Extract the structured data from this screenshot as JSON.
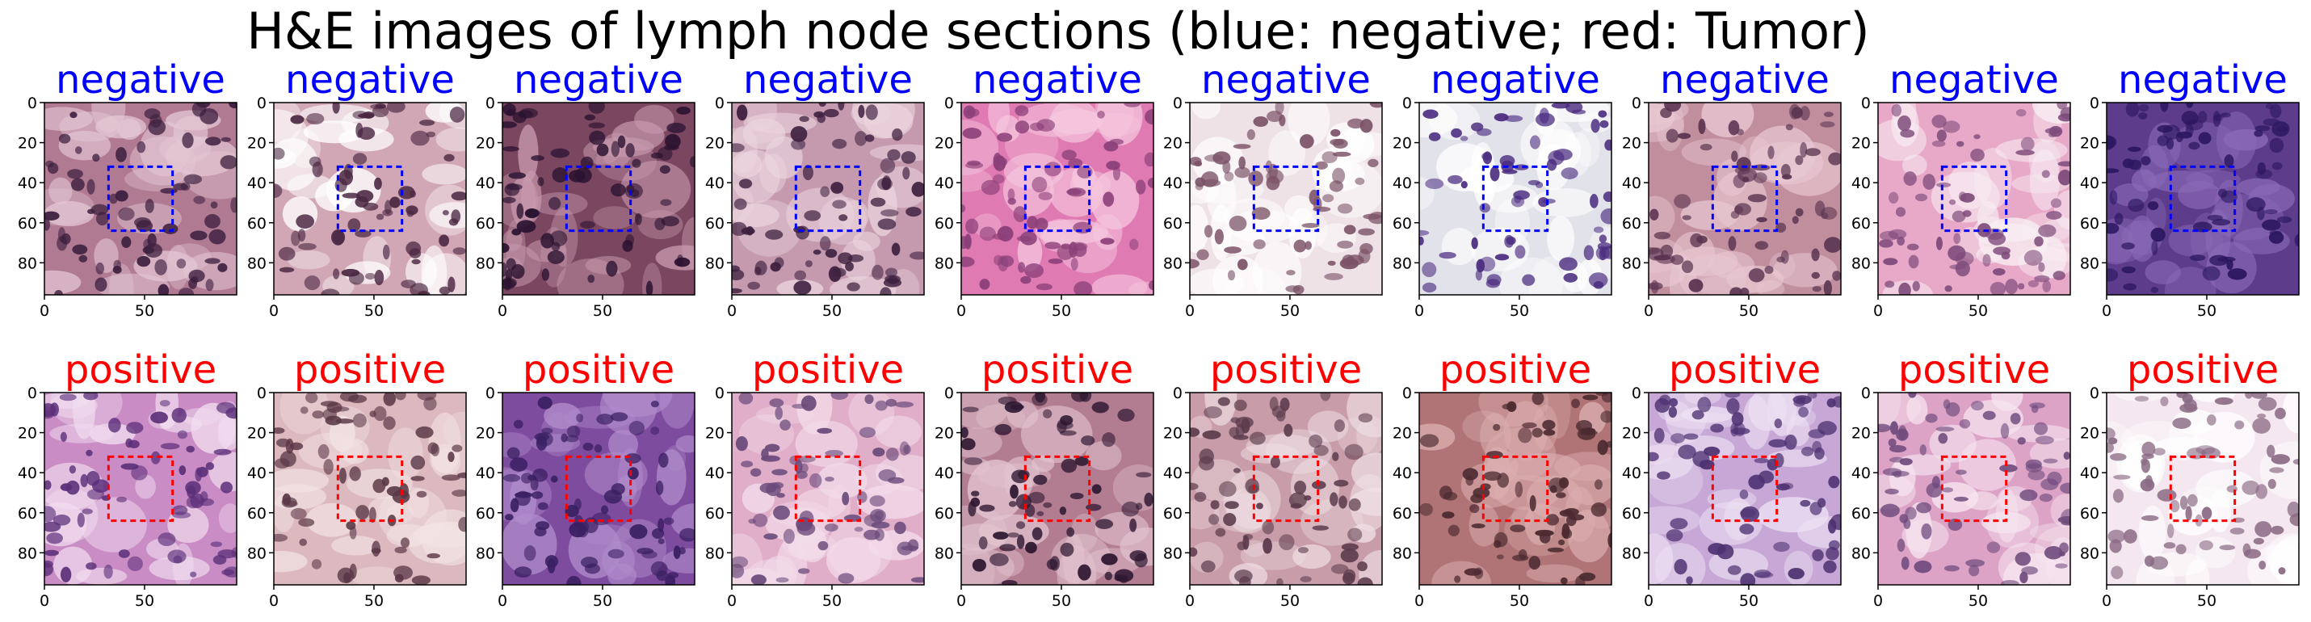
{
  "title": "H&E images of lymph node sections (blue: negative; red: Tumor)",
  "colors": {
    "negative": "#0000ff",
    "positive": "#ff0000",
    "axis": "#000000"
  },
  "axis": {
    "xticks": [
      0,
      50
    ],
    "yticks": [
      0,
      20,
      40,
      60,
      80
    ],
    "xlim": [
      0,
      96
    ],
    "ylim": [
      96,
      0
    ],
    "roi": {
      "x0": 32,
      "y0": 32,
      "x1": 64,
      "y1": 64
    }
  },
  "rows": [
    {
      "label": "negative",
      "color_key": "negative",
      "tiles": [
        {
          "bg": "#b07a92",
          "cell": "#3d1f3f",
          "alt": "#e4c7d4"
        },
        {
          "bg": "#d2a7b5",
          "cell": "#4a2742",
          "alt": "#ffffff"
        },
        {
          "bg": "#7a4660",
          "cell": "#2a1230",
          "alt": "#c89aae"
        },
        {
          "bg": "#c59aae",
          "cell": "#3e2040",
          "alt": "#ecd6df"
        },
        {
          "bg": "#e07ab3",
          "cell": "#8a3f78",
          "alt": "#f5c7de"
        },
        {
          "bg": "#efe2e6",
          "cell": "#7b5267",
          "alt": "#ffffff"
        },
        {
          "bg": "#e2e2ea",
          "cell": "#4b2c80",
          "alt": "#ffffff"
        },
        {
          "bg": "#c18e9e",
          "cell": "#5a3450",
          "alt": "#e8c8d2"
        },
        {
          "bg": "#e8a9c9",
          "cell": "#7d4a7a",
          "alt": "#f8eef3"
        },
        {
          "bg": "#5e3c8c",
          "cell": "#2c1760",
          "alt": "#8a6ab8"
        }
      ]
    },
    {
      "label": "positive",
      "color_key": "positive",
      "tiles": [
        {
          "bg": "#c98cc4",
          "cell": "#5b2f79",
          "alt": "#f1dcef"
        },
        {
          "bg": "#dcb9bf",
          "cell": "#5a3746",
          "alt": "#f2e2e4"
        },
        {
          "bg": "#7e4c9e",
          "cell": "#3a1f63",
          "alt": "#b08ccb"
        },
        {
          "bg": "#e0aec9",
          "cell": "#6a4a7a",
          "alt": "#f3dcea"
        },
        {
          "bg": "#b27c91",
          "cell": "#2f1832",
          "alt": "#e2c3cf"
        },
        {
          "bg": "#c89ca8",
          "cell": "#5c3c4c",
          "alt": "#efdfe4"
        },
        {
          "bg": "#b07476",
          "cell": "#4b2a30",
          "alt": "#dcaeb0"
        },
        {
          "bg": "#c7a7d6",
          "cell": "#4d3171",
          "alt": "#ede1f3"
        },
        {
          "bg": "#dca3c7",
          "cell": "#6e4a7c",
          "alt": "#f6e4ef"
        },
        {
          "bg": "#f4e7ef",
          "cell": "#8a6a84",
          "alt": "#ffffff"
        }
      ]
    }
  ]
}
